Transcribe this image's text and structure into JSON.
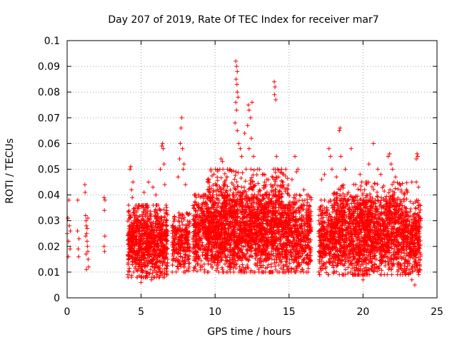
{
  "chart_data": {
    "type": "scatter",
    "title": "Day 207 of 2019, Rate Of TEC Index for receiver mar7",
    "xlabel": "GPS time / hours",
    "ylabel": "ROTI / TECUs",
    "xlim": [
      0,
      25
    ],
    "ylim": [
      0,
      0.1
    ],
    "x_ticks": [
      0,
      5,
      10,
      15,
      20,
      25
    ],
    "x_tick_labels": [
      "0",
      "5",
      "10",
      "15",
      "20",
      "25"
    ],
    "y_ticks": [
      0,
      0.01,
      0.02,
      0.03,
      0.04,
      0.05,
      0.06,
      0.07,
      0.08,
      0.09,
      0.1
    ],
    "y_tick_labels": [
      "0",
      "0.01",
      "0.02",
      "0.03",
      "0.04",
      "0.05",
      "0.06",
      "0.07",
      "0.08",
      "0.09",
      "0.1"
    ],
    "grid": true,
    "marker": "+",
    "marker_color": "#ff0000",
    "series": [
      {
        "name": "ROTI",
        "points": [
          [
            0.0,
            0.025
          ],
          [
            0.05,
            0.031
          ],
          [
            0.08,
            0.016
          ],
          [
            0.1,
            0.022
          ],
          [
            0.12,
            0.038
          ],
          [
            0.15,
            0.028
          ],
          [
            0.2,
            0.019
          ],
          [
            0.22,
            0.026
          ],
          [
            0.7,
            0.026
          ],
          [
            0.72,
            0.038
          ],
          [
            0.75,
            0.019
          ],
          [
            0.78,
            0.016
          ],
          [
            0.8,
            0.023
          ],
          [
            1.2,
            0.044
          ],
          [
            1.22,
            0.041
          ],
          [
            1.25,
            0.032
          ],
          [
            1.28,
            0.03
          ],
          [
            1.3,
            0.028
          ],
          [
            1.32,
            0.025
          ],
          [
            1.35,
            0.022
          ],
          [
            1.38,
            0.02
          ],
          [
            1.4,
            0.018
          ],
          [
            1.42,
            0.015
          ],
          [
            1.45,
            0.012
          ],
          [
            1.3,
            0.011
          ],
          [
            1.35,
            0.027
          ],
          [
            1.4,
            0.031
          ],
          [
            1.25,
            0.024
          ],
          [
            1.28,
            0.017
          ],
          [
            2.5,
            0.039
          ],
          [
            2.52,
            0.034
          ],
          [
            2.55,
            0.024
          ],
          [
            2.5,
            0.02
          ],
          [
            2.53,
            0.018
          ],
          [
            2.56,
            0.038
          ],
          [
            4.25,
            0.05
          ],
          [
            4.3,
            0.051
          ],
          [
            4.35,
            0.042
          ],
          [
            4.4,
            0.039
          ],
          [
            4.45,
            0.045
          ],
          [
            5.2,
            0.041
          ],
          [
            5.5,
            0.045
          ],
          [
            5.8,
            0.043
          ],
          [
            6.0,
            0.04
          ],
          [
            6.3,
            0.05
          ],
          [
            6.4,
            0.059
          ],
          [
            6.45,
            0.06
          ],
          [
            6.5,
            0.058
          ],
          [
            6.55,
            0.052
          ],
          [
            6.6,
            0.044
          ],
          [
            5.0,
            0.006
          ],
          [
            5.3,
            0.008
          ],
          [
            5.7,
            0.007
          ],
          [
            6.1,
            0.009
          ],
          [
            4.5,
            0.01
          ],
          [
            7.5,
            0.047
          ],
          [
            7.6,
            0.054
          ],
          [
            7.65,
            0.06
          ],
          [
            7.7,
            0.066
          ],
          [
            7.75,
            0.07
          ],
          [
            7.8,
            0.058
          ],
          [
            7.85,
            0.05
          ],
          [
            7.9,
            0.052
          ],
          [
            8.0,
            0.044
          ],
          [
            9.2,
            0.04
          ],
          [
            9.5,
            0.042
          ],
          [
            10.4,
            0.054
          ],
          [
            10.5,
            0.053
          ],
          [
            10.8,
            0.047
          ],
          [
            11.0,
            0.05
          ],
          [
            11.4,
            0.092
          ],
          [
            11.45,
            0.09
          ],
          [
            11.5,
            0.088
          ],
          [
            11.42,
            0.085
          ],
          [
            11.48,
            0.083
          ],
          [
            11.5,
            0.08
          ],
          [
            11.55,
            0.078
          ],
          [
            11.4,
            0.076
          ],
          [
            11.45,
            0.073
          ],
          [
            11.35,
            0.068
          ],
          [
            11.5,
            0.065
          ],
          [
            11.6,
            0.06
          ],
          [
            11.7,
            0.058
          ],
          [
            11.8,
            0.055
          ],
          [
            12.0,
            0.064
          ],
          [
            12.2,
            0.067
          ],
          [
            12.25,
            0.075
          ],
          [
            12.3,
            0.073
          ],
          [
            12.4,
            0.07
          ],
          [
            12.5,
            0.076
          ],
          [
            12.45,
            0.062
          ],
          [
            12.3,
            0.058
          ],
          [
            12.6,
            0.055
          ],
          [
            12.1,
            0.05
          ],
          [
            13.0,
            0.05
          ],
          [
            13.2,
            0.048
          ],
          [
            13.5,
            0.046
          ],
          [
            14.0,
            0.084
          ],
          [
            14.05,
            0.082
          ],
          [
            14.02,
            0.079
          ],
          [
            14.1,
            0.077
          ],
          [
            14.15,
            0.055
          ],
          [
            14.3,
            0.047
          ],
          [
            14.6,
            0.045
          ],
          [
            15.2,
            0.046
          ],
          [
            15.4,
            0.055
          ],
          [
            15.5,
            0.049
          ],
          [
            15.6,
            0.05
          ],
          [
            16.0,
            0.042
          ],
          [
            16.3,
            0.04
          ],
          [
            17.2,
            0.046
          ],
          [
            17.4,
            0.048
          ],
          [
            17.7,
            0.058
          ],
          [
            17.8,
            0.055
          ],
          [
            17.9,
            0.05
          ],
          [
            18.2,
            0.047
          ],
          [
            18.4,
            0.065
          ],
          [
            18.45,
            0.066
          ],
          [
            18.5,
            0.055
          ],
          [
            18.8,
            0.05
          ],
          [
            19.2,
            0.058
          ],
          [
            19.5,
            0.044
          ],
          [
            19.8,
            0.048
          ],
          [
            20.2,
            0.045
          ],
          [
            20.4,
            0.052
          ],
          [
            20.7,
            0.06
          ],
          [
            21.0,
            0.05
          ],
          [
            21.2,
            0.048
          ],
          [
            21.7,
            0.055
          ],
          [
            21.8,
            0.056
          ],
          [
            21.9,
            0.052
          ],
          [
            22.0,
            0.05
          ],
          [
            22.2,
            0.047
          ],
          [
            22.5,
            0.044
          ],
          [
            22.8,
            0.04
          ],
          [
            23.0,
            0.041
          ],
          [
            23.3,
            0.045
          ],
          [
            23.6,
            0.054
          ],
          [
            23.65,
            0.056
          ],
          [
            23.7,
            0.055
          ],
          [
            23.75,
            0.043
          ],
          [
            23.6,
            0.045
          ],
          [
            23.5,
            0.005
          ],
          [
            23.3,
            0.007
          ],
          [
            22.8,
            0.01
          ],
          [
            20.0,
            0.007
          ],
          [
            19.3,
            0.009
          ],
          [
            18.0,
            0.01
          ],
          [
            17.5,
            0.012
          ]
        ],
        "clusters": [
          {
            "x": [
              4.1,
              6.8
            ],
            "y": [
              0.008,
              0.036
            ],
            "count": 900
          },
          {
            "x": [
              7.1,
              8.3
            ],
            "y": [
              0.01,
              0.033
            ],
            "count": 260
          },
          {
            "x": [
              8.5,
              16.5
            ],
            "y": [
              0.01,
              0.04
            ],
            "count": 2400
          },
          {
            "x": [
              9.5,
              15.0
            ],
            "y": [
              0.025,
              0.05
            ],
            "count": 500
          },
          {
            "x": [
              17.0,
              23.9
            ],
            "y": [
              0.009,
              0.038
            ],
            "count": 2000
          },
          {
            "x": [
              18.0,
              23.0
            ],
            "y": [
              0.025,
              0.045
            ],
            "count": 350
          }
        ]
      }
    ]
  }
}
